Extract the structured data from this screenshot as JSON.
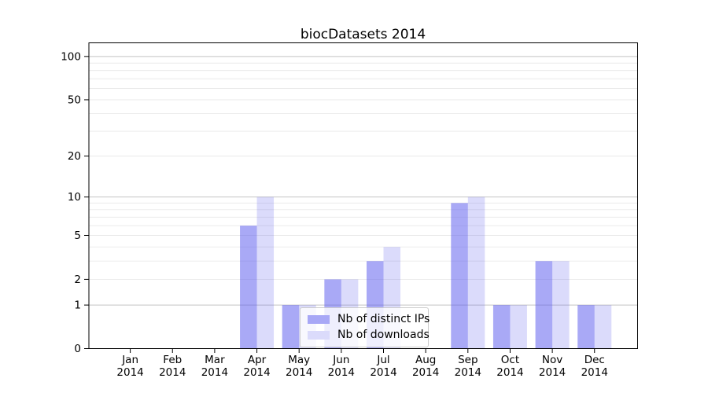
{
  "title": "biocDatasets 2014",
  "chart_data": {
    "type": "bar",
    "title": "biocDatasets 2014",
    "categories": [
      "Jan 2014",
      "Feb 2014",
      "Mar 2014",
      "Apr 2014",
      "May 2014",
      "Jun 2014",
      "Jul 2014",
      "Aug 2014",
      "Sep 2014",
      "Oct 2014",
      "Nov 2014",
      "Dec 2014"
    ],
    "series": [
      {
        "name": "Nb of distinct IPs",
        "alpha": 0.53,
        "swatch_color": "#a8a8f6",
        "values": [
          0,
          0,
          0,
          6,
          1,
          2,
          3,
          0,
          9,
          1,
          3,
          1
        ]
      },
      {
        "name": "Nb of downloads",
        "alpha": 0.22,
        "swatch_color": "#dbdbfb",
        "values": [
          0,
          0,
          0,
          10,
          1,
          2,
          4,
          0,
          10,
          1,
          3,
          1
        ]
      }
    ],
    "xlabel": "",
    "ylabel": "",
    "yscale": "log1p",
    "ylim": [
      0,
      125
    ],
    "y_ticks": [
      0,
      1,
      2,
      5,
      10,
      20,
      50,
      100
    ],
    "y_major_gridlines": [
      1,
      10,
      100
    ],
    "y_minor_gridlines": [
      2,
      3,
      4,
      5,
      6,
      7,
      8,
      9,
      20,
      30,
      40,
      50,
      60,
      70,
      80,
      90
    ],
    "grid": "horizontal",
    "legend_position": "lower center"
  },
  "colors": {
    "bar_base": "92,92,238",
    "major_grid": "#c3c3c3",
    "minor_grid": "#e9e9e9",
    "axis": "#000000",
    "legend_border": "#cccccc",
    "background": "#ffffff"
  }
}
